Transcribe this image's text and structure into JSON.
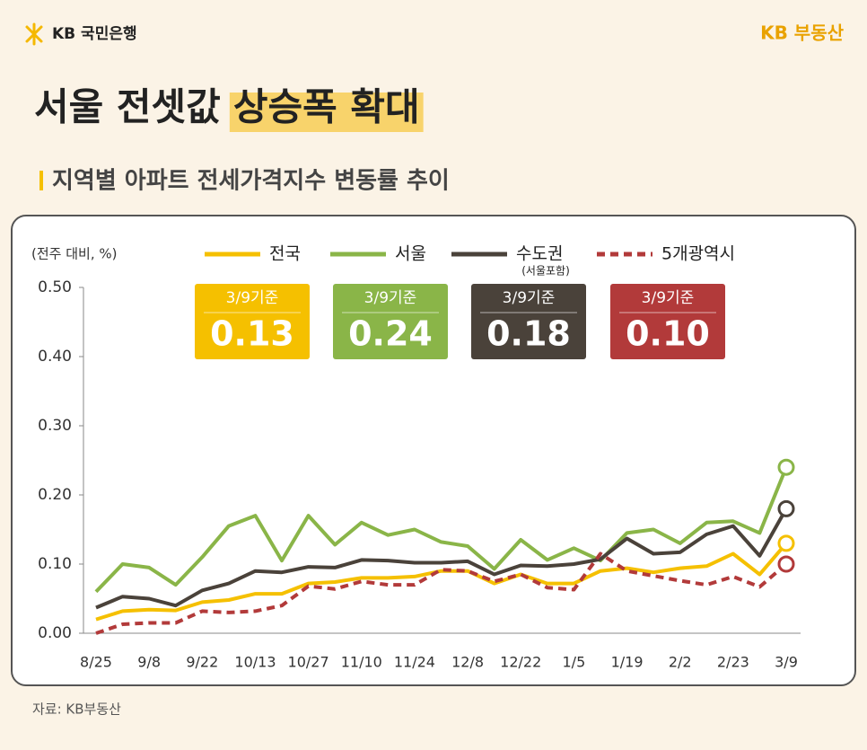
{
  "header": {
    "bank_logo": "KB 국민은행",
    "brand_logo": "KB 부동산"
  },
  "title": {
    "plain": "서울 전셋값",
    "highlight": "상승폭 확대"
  },
  "subtitle": "지역별 아파트 전세가격지수 변동률 추이",
  "source": "자료: KB부동산",
  "chart_data": {
    "type": "line",
    "y_label": "(전주 대비, %)",
    "categories": [
      "8/25",
      null,
      "9/8",
      null,
      "9/22",
      null,
      "10/13",
      null,
      "10/27",
      null,
      "11/10",
      null,
      "11/24",
      null,
      "12/8",
      null,
      "12/22",
      null,
      "1/5",
      null,
      "1/19",
      null,
      "2/2",
      null,
      "2/23",
      null,
      "3/9"
    ],
    "ylim": [
      0,
      0.5
    ],
    "yticks": [
      {
        "value": 0,
        "label": "0.00"
      },
      {
        "value": 0.1,
        "label": "0.10"
      },
      {
        "value": 0.2,
        "label": "0.20"
      },
      {
        "value": 0.3,
        "label": "0.30"
      },
      {
        "value": 0.4,
        "label": "0.40"
      },
      {
        "value": 0.5,
        "label": "0.50"
      }
    ],
    "grid": false,
    "series": [
      {
        "name": "전국",
        "color": "#f5c000",
        "style": "solid",
        "badge": {
          "label": "3/9기준",
          "value": "0.13"
        },
        "values": [
          0.02,
          0.032,
          0.034,
          0.033,
          0.045,
          0.048,
          0.057,
          0.057,
          0.072,
          0.074,
          0.08,
          0.08,
          0.082,
          0.09,
          0.09,
          0.072,
          0.085,
          0.072,
          0.072,
          0.09,
          0.094,
          0.088,
          0.094,
          0.097,
          0.115,
          0.085,
          0.13
        ]
      },
      {
        "name": "서울",
        "color": "#8ab548",
        "style": "solid",
        "badge": {
          "label": "3/9기준",
          "value": "0.24"
        },
        "values": [
          0.06,
          0.1,
          0.095,
          0.07,
          0.11,
          0.155,
          0.17,
          0.105,
          0.17,
          0.128,
          0.16,
          0.142,
          0.15,
          0.132,
          0.126,
          0.093,
          0.135,
          0.106,
          0.123,
          0.105,
          0.145,
          0.15,
          0.13,
          0.16,
          0.162,
          0.145,
          0.24
        ]
      },
      {
        "name": "수도권",
        "note": "(서울포함)",
        "color": "#4a423a",
        "style": "solid",
        "badge": {
          "label": "3/9기준",
          "value": "0.18"
        },
        "values": [
          0.037,
          0.053,
          0.05,
          0.04,
          0.062,
          0.072,
          0.09,
          0.088,
          0.096,
          0.095,
          0.106,
          0.105,
          0.102,
          0.102,
          0.104,
          0.085,
          0.098,
          0.097,
          0.1,
          0.107,
          0.137,
          0.115,
          0.117,
          0.143,
          0.155,
          0.112,
          0.18
        ]
      },
      {
        "name": "5개광역시",
        "color": "#b23a3a",
        "style": "dashed",
        "badge": {
          "label": "3/9기준",
          "value": "0.10"
        },
        "values": [
          0.0,
          0.013,
          0.015,
          0.015,
          0.032,
          0.03,
          0.032,
          0.04,
          0.068,
          0.064,
          0.075,
          0.07,
          0.07,
          0.092,
          0.09,
          0.075,
          0.085,
          0.066,
          0.063,
          0.115,
          0.09,
          0.083,
          0.076,
          0.07,
          0.082,
          0.067,
          0.1
        ]
      }
    ]
  }
}
